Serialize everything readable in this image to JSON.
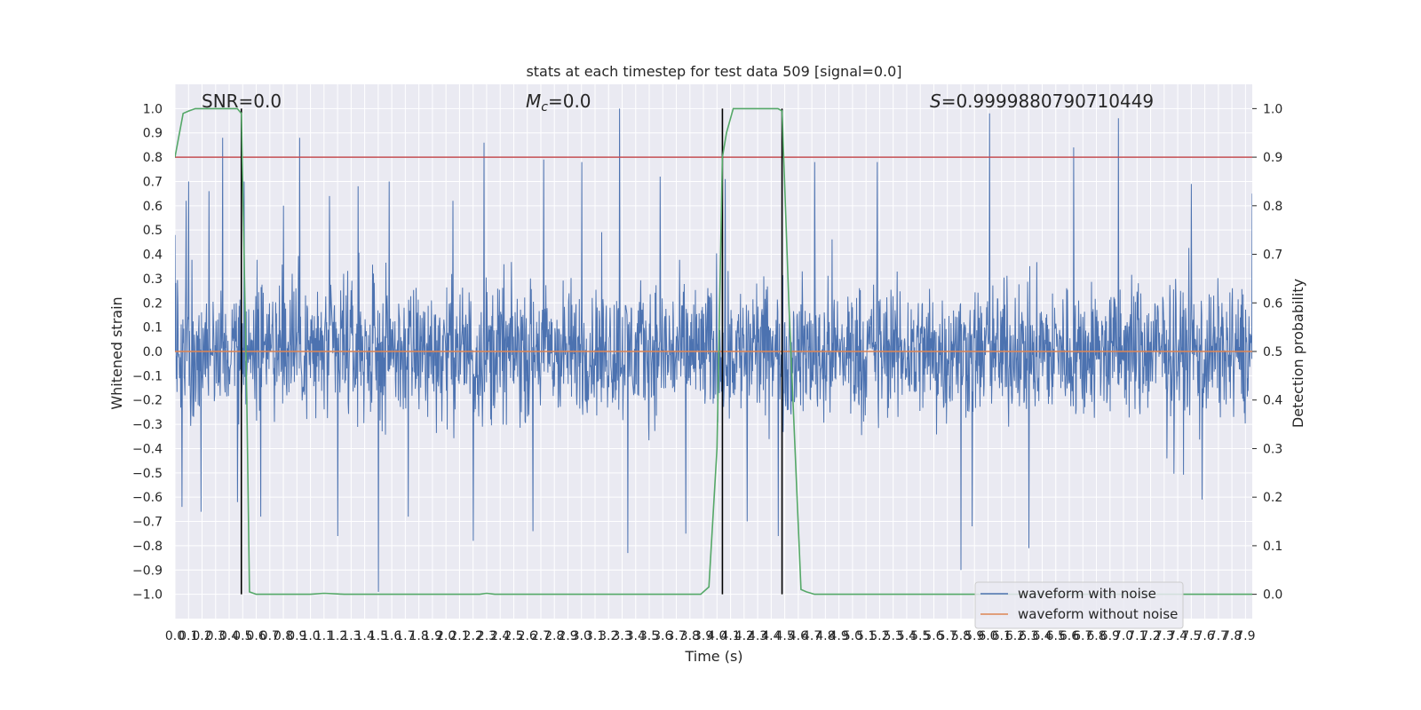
{
  "chart_data": {
    "type": "line",
    "title": "stats at each timestep for test data 509 [signal=0.0]",
    "xlabel": "Time (s)",
    "ylabel": "Whitened strain",
    "y2label": "Detection probability",
    "xlim": [
      0.0,
      7.95
    ],
    "ylim": [
      -1.1,
      1.1
    ],
    "y2lim": [
      -0.05,
      1.05
    ],
    "x_ticks": [
      "0.0",
      "0.1",
      "0.2",
      "0.3",
      "0.4",
      "0.5",
      "0.6",
      "0.7",
      "0.8",
      "0.9",
      "1.0",
      "1.1",
      "1.2",
      "1.3",
      "1.4",
      "1.5",
      "1.6",
      "1.7",
      "1.8",
      "1.9",
      "2.0",
      "2.1",
      "2.2",
      "2.3",
      "2.4",
      "2.5",
      "2.6",
      "2.7",
      "2.8",
      "2.9",
      "3.0",
      "3.1",
      "3.2",
      "3.3",
      "3.4",
      "3.5",
      "3.6",
      "3.7",
      "3.8",
      "3.9",
      "4.0",
      "4.1",
      "4.2",
      "4.3",
      "4.4",
      "4.5",
      "4.6",
      "4.7",
      "4.8",
      "4.9",
      "5.0",
      "5.1",
      "5.2",
      "5.3",
      "5.4",
      "5.5",
      "5.6",
      "5.7",
      "5.8",
      "5.9",
      "6.0",
      "6.1",
      "6.2",
      "6.3",
      "6.4",
      "6.5",
      "6.6",
      "6.7",
      "6.8",
      "6.9",
      "7.0",
      "7.1",
      "7.2",
      "7.3",
      "7.4",
      "7.5",
      "7.6",
      "7.7",
      "7.8",
      "7.9"
    ],
    "y_ticks": [
      "1.0",
      "0.9",
      "0.8",
      "0.7",
      "0.6",
      "0.5",
      "0.4",
      "0.3",
      "0.2",
      "0.1",
      "0.0",
      "−0.1",
      "−0.2",
      "−0.3",
      "−0.4",
      "−0.5",
      "−0.6",
      "−0.7",
      "−0.8",
      "−0.9",
      "−1.0"
    ],
    "y2_ticks": [
      "1.0",
      "0.9",
      "0.8",
      "0.7",
      "0.6",
      "0.5",
      "0.4",
      "0.3",
      "0.2",
      "0.1",
      "0.0"
    ],
    "annotations": {
      "snr": "SNR=0.0",
      "mc_symbol": "M",
      "mc_sub": "c",
      "mc_value": "=0.0",
      "s_symbol": "S",
      "s_value": "=0.9999880790710449"
    },
    "threshold": {
      "value": 0.9,
      "axis": "y2",
      "color": "#c44e52"
    },
    "vertical_markers": [
      0.49,
      4.04,
      4.48
    ],
    "marker_color": "#000000",
    "noise_waveform": {
      "name": "waveform with noise",
      "color": "#4c72b0",
      "envelope_typical": 0.4,
      "peaks": [
        {
          "x": 0.0,
          "y": 0.48
        },
        {
          "x": 0.05,
          "y": -0.64
        },
        {
          "x": 0.08,
          "y": 0.62
        },
        {
          "x": 0.1,
          "y": 0.7
        },
        {
          "x": 0.19,
          "y": -0.66
        },
        {
          "x": 0.25,
          "y": 0.66
        },
        {
          "x": 0.35,
          "y": 0.88
        },
        {
          "x": 0.46,
          "y": -0.62
        },
        {
          "x": 0.51,
          "y": 0.7
        },
        {
          "x": 0.63,
          "y": -0.68
        },
        {
          "x": 0.8,
          "y": 0.6
        },
        {
          "x": 0.92,
          "y": 0.88
        },
        {
          "x": 1.14,
          "y": 0.64
        },
        {
          "x": 1.2,
          "y": -0.76
        },
        {
          "x": 1.35,
          "y": 0.68
        },
        {
          "x": 1.5,
          "y": -0.99
        },
        {
          "x": 1.58,
          "y": 0.7
        },
        {
          "x": 1.72,
          "y": -0.68
        },
        {
          "x": 2.05,
          "y": 0.62
        },
        {
          "x": 2.2,
          "y": -0.78
        },
        {
          "x": 2.28,
          "y": 0.86
        },
        {
          "x": 2.64,
          "y": -0.74
        },
        {
          "x": 2.72,
          "y": 0.79
        },
        {
          "x": 3.0,
          "y": 0.78
        },
        {
          "x": 3.28,
          "y": 1.0
        },
        {
          "x": 3.34,
          "y": -0.83
        },
        {
          "x": 3.58,
          "y": 0.72
        },
        {
          "x": 3.77,
          "y": -0.75
        },
        {
          "x": 4.06,
          "y": 0.71
        },
        {
          "x": 4.22,
          "y": -0.7
        },
        {
          "x": 4.45,
          "y": -0.76
        },
        {
          "x": 4.72,
          "y": 0.78
        },
        {
          "x": 5.18,
          "y": 0.78
        },
        {
          "x": 5.8,
          "y": -0.9
        },
        {
          "x": 5.88,
          "y": -0.72
        },
        {
          "x": 6.01,
          "y": 0.98
        },
        {
          "x": 6.3,
          "y": -0.81
        },
        {
          "x": 6.63,
          "y": 0.84
        },
        {
          "x": 6.96,
          "y": 0.96
        },
        {
          "x": 7.5,
          "y": 0.69
        },
        {
          "x": 7.58,
          "y": -0.61
        },
        {
          "x": 7.95,
          "y": 0.65
        }
      ]
    },
    "clean_waveform": {
      "name": "waveform without noise",
      "color": "#dd8452",
      "value": 0.0
    },
    "detection": {
      "color": "#55a868",
      "x": [
        0.0,
        0.06,
        0.1,
        0.15,
        0.4,
        0.46,
        0.49,
        0.53,
        0.55,
        0.6,
        1.0,
        1.1,
        1.25,
        1.4,
        2.25,
        2.3,
        2.36,
        3.0,
        3.6,
        3.88,
        3.94,
        4.0,
        4.04,
        4.07,
        4.12,
        4.35,
        4.45,
        4.48,
        4.53,
        4.62,
        4.66,
        4.72,
        5.2,
        6.0,
        7.95
      ],
      "y": [
        0.9,
        0.99,
        0.995,
        1.0,
        1.0,
        1.0,
        0.99,
        0.4,
        0.005,
        0.0,
        0.0,
        0.002,
        0.0,
        0.0,
        0.0,
        0.002,
        0.0,
        0.0,
        0.0,
        0.0,
        0.015,
        0.3,
        0.9,
        0.95,
        1.0,
        1.0,
        1.0,
        0.995,
        0.6,
        0.01,
        0.005,
        0.0,
        0.0,
        0.0,
        0.0
      ]
    },
    "legend": {
      "position": "lower-right",
      "entries": [
        "waveform with noise",
        "waveform without noise"
      ]
    },
    "style": {
      "background": "#eaeaf2",
      "grid": true,
      "grid_color": "#ffffff"
    }
  }
}
